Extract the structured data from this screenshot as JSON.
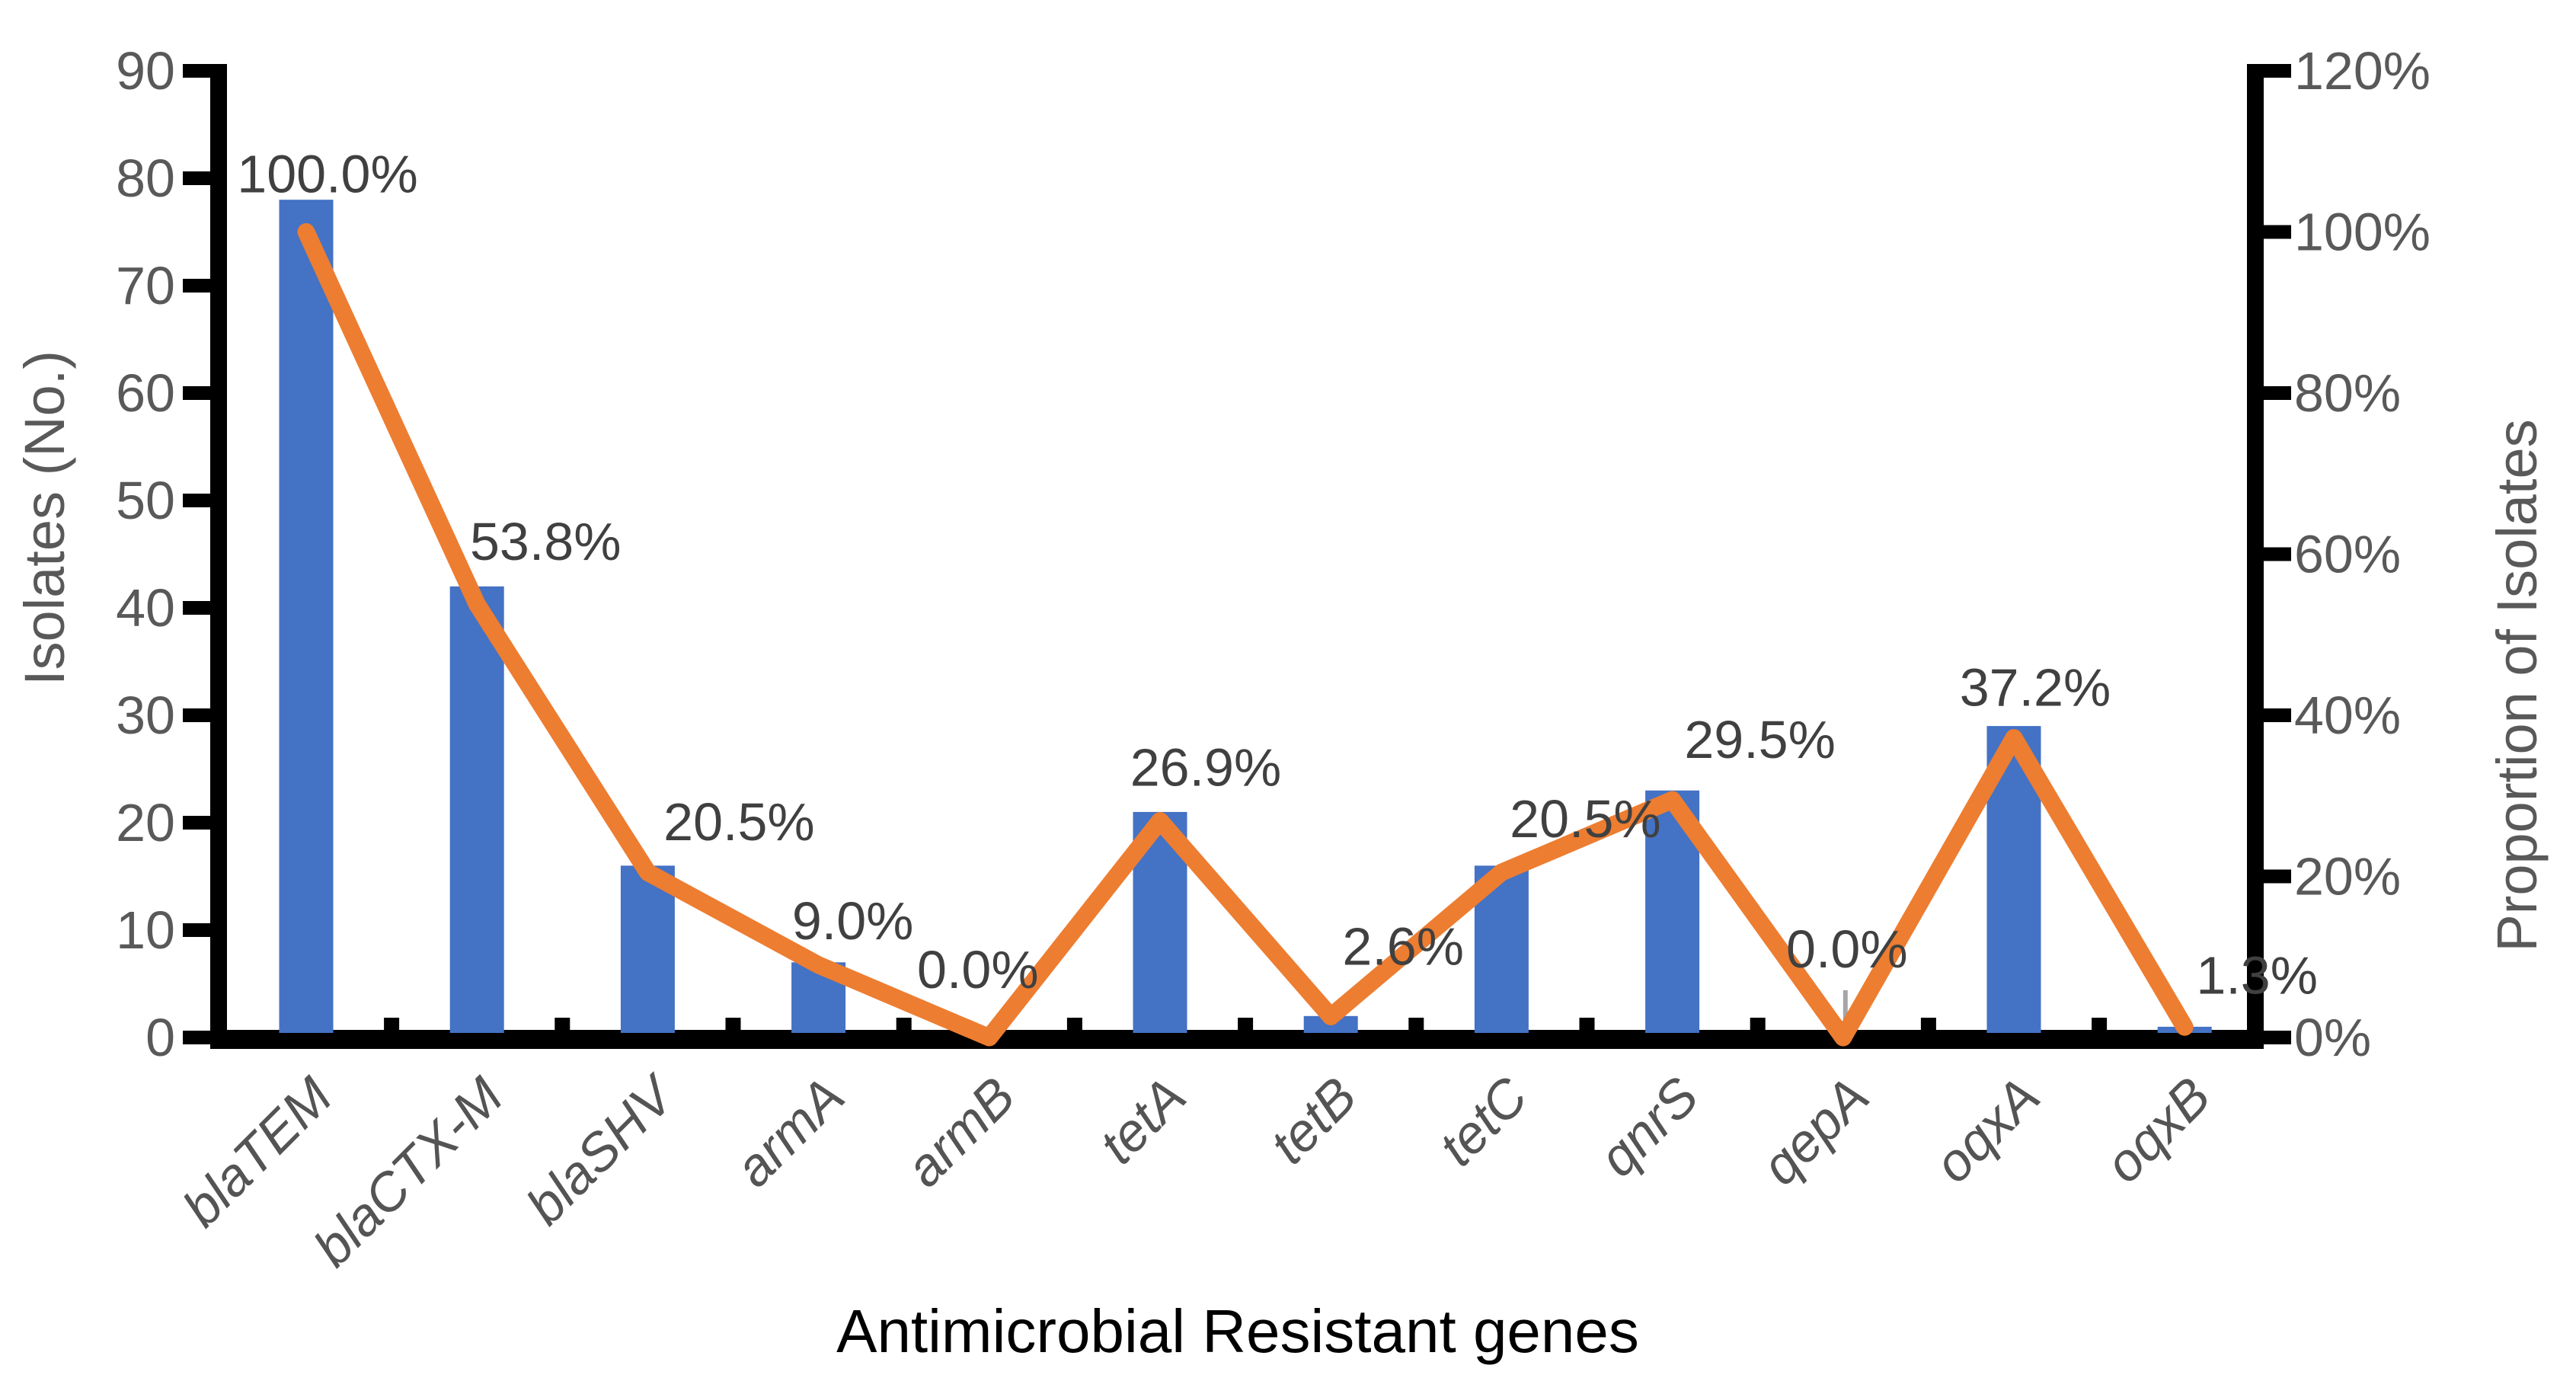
{
  "chart_data": {
    "type": "bar",
    "subtype": "bar-line-combo-dual-axis",
    "title": "",
    "xlabel": "Antimicrobial Resistant genes",
    "ylabel_left": "Isolates (No.)",
    "ylabel_right": "Proportion of Isolates",
    "categories": [
      "blaTEM",
      "blaCTX-M",
      "blaSHV",
      "armA",
      "armB",
      "tetA",
      "tetB",
      "tetC",
      "qnrS",
      "qepA",
      "oqxA",
      "oqxB"
    ],
    "series": [
      {
        "name": "Isolates (No.)",
        "type": "bar",
        "axis": "left",
        "values": [
          78,
          42,
          16,
          7,
          0,
          21,
          2,
          16,
          23,
          0,
          29,
          1
        ]
      },
      {
        "name": "Proportion of Isolates",
        "type": "line",
        "axis": "right",
        "values_pct": [
          100.0,
          53.8,
          20.5,
          9.0,
          0.0,
          26.9,
          2.6,
          20.5,
          29.5,
          0.0,
          37.2,
          1.3
        ],
        "point_labels": [
          "100.0%",
          "53.8%",
          "20.5%",
          "9.0%",
          "0.0%",
          "26.9%",
          "2.6%",
          "20.5%",
          "29.5%",
          "0.0%",
          "37.2%",
          "1.3%"
        ]
      }
    ],
    "left_axis": {
      "min": 0,
      "max": 90,
      "step": 10,
      "tick_labels": [
        "0",
        "10",
        "20",
        "30",
        "40",
        "50",
        "60",
        "70",
        "80",
        "90"
      ]
    },
    "right_axis": {
      "min": 0,
      "max": 120,
      "step": 20,
      "tick_labels": [
        "0%",
        "20%",
        "40%",
        "60%",
        "80%",
        "100%",
        "120%"
      ]
    },
    "grid": "off",
    "legend": "none",
    "leader_line_category": "qepA",
    "colors": {
      "bar": "#4472C4",
      "line": "#ED7D31",
      "axis": "#000000",
      "tick_text": "#595959",
      "data_label_text": "#404040",
      "category_text": "#545454",
      "leader_line": "#A6A6A6",
      "background": "#FFFFFF"
    }
  }
}
